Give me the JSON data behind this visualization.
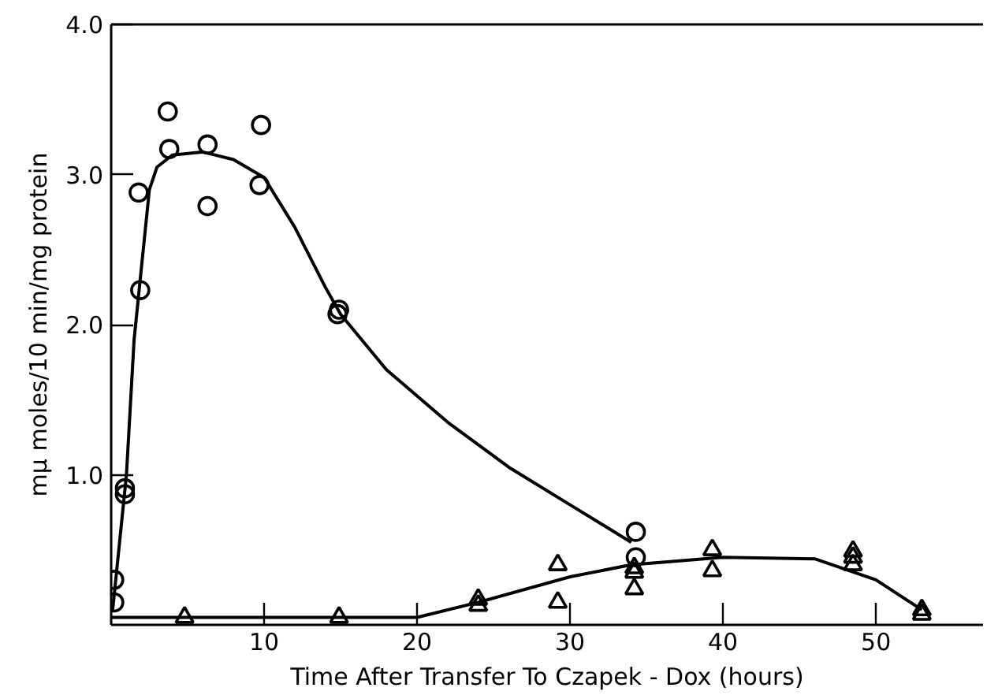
{
  "chart_data": {
    "type": "scatter",
    "xlabel": "Time After Transfer To Czapek - Dox (hours)",
    "ylabel": "mμ moles/10 min/mg protein",
    "xlim": [
      0,
      57
    ],
    "ylim": [
      0,
      4.0
    ],
    "xticks": [
      10,
      20,
      30,
      40,
      50
    ],
    "yticks": [
      {
        "value": 1,
        "label": "1.0"
      },
      {
        "value": 2,
        "label": "2.0"
      },
      {
        "value": 3,
        "label": "3.0"
      },
      {
        "value": 4,
        "label": "4.0"
      }
    ],
    "grid": false,
    "series": [
      {
        "marker": "circle",
        "color": "#000000",
        "x": [
          0.2,
          0.2,
          0.9,
          0.9,
          1.8,
          1.9,
          3.7,
          3.8,
          6.3,
          6.3,
          9.8,
          9.7,
          14.8,
          14.9,
          34.3,
          34.3
        ],
        "values": [
          0.3,
          0.15,
          0.87,
          0.91,
          2.88,
          2.23,
          3.42,
          3.17,
          3.2,
          2.79,
          3.33,
          2.93,
          2.07,
          2.1,
          0.62,
          0.45
        ]
      },
      {
        "marker": "triangle",
        "color": "#000000",
        "x": [
          4.8,
          14.9,
          24,
          24,
          29.2,
          29.2,
          34.2,
          34.2,
          34.2,
          39.3,
          39.3,
          48.5,
          48.5,
          48.5,
          53,
          53
        ],
        "values": [
          0.05,
          0.05,
          0.13,
          0.17,
          0.4,
          0.15,
          0.35,
          0.24,
          0.38,
          0.5,
          0.36,
          0.45,
          0.4,
          0.49,
          0.07,
          0.1
        ]
      },
      {
        "type": "line",
        "color": "#000000",
        "x": [
          0.1,
          0.5,
          1,
          1.5,
          2,
          2.5,
          3,
          4,
          6,
          8,
          10,
          12,
          14,
          15,
          18,
          22,
          26,
          30,
          34
        ],
        "values": [
          0.1,
          0.5,
          1.0,
          1.9,
          2.4,
          2.9,
          3.05,
          3.13,
          3.15,
          3.1,
          2.98,
          2.65,
          2.25,
          2.07,
          1.7,
          1.35,
          1.05,
          0.8,
          0.55
        ]
      },
      {
        "type": "line",
        "color": "#000000",
        "x": [
          0,
          10,
          20,
          24,
          30,
          34,
          40,
          46,
          50,
          53
        ],
        "values": [
          0.05,
          0.05,
          0.05,
          0.15,
          0.32,
          0.4,
          0.45,
          0.44,
          0.3,
          0.1
        ]
      }
    ]
  }
}
